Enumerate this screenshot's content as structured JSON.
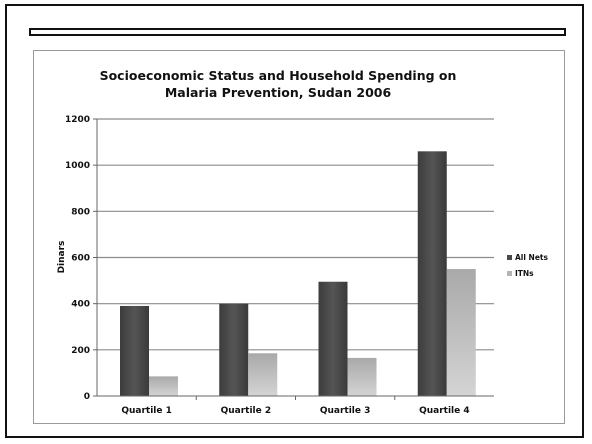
{
  "chart_data": {
    "type": "bar",
    "title_lines": [
      "Socioeconomic Status and Household Spending on",
      "Malaria Prevention, Sudan 2006"
    ],
    "ylabel": "Dinars",
    "xlabel": "",
    "ylim": [
      0,
      1200
    ],
    "yticks": [
      "0",
      "200",
      "400",
      "600",
      "800",
      "1000",
      "1200"
    ],
    "grid": true,
    "legend_position": "right",
    "categories": [
      "Quartile 1",
      "Quartile 2",
      "Quartile 3",
      "Quartile 4"
    ],
    "series": [
      {
        "name": "All Nets",
        "values": [
          390,
          400,
          495,
          1060
        ],
        "color": "#4a4a4a"
      },
      {
        "name": "ITNs",
        "values": [
          85,
          185,
          165,
          550
        ],
        "color": "#b4b4b4"
      }
    ]
  }
}
